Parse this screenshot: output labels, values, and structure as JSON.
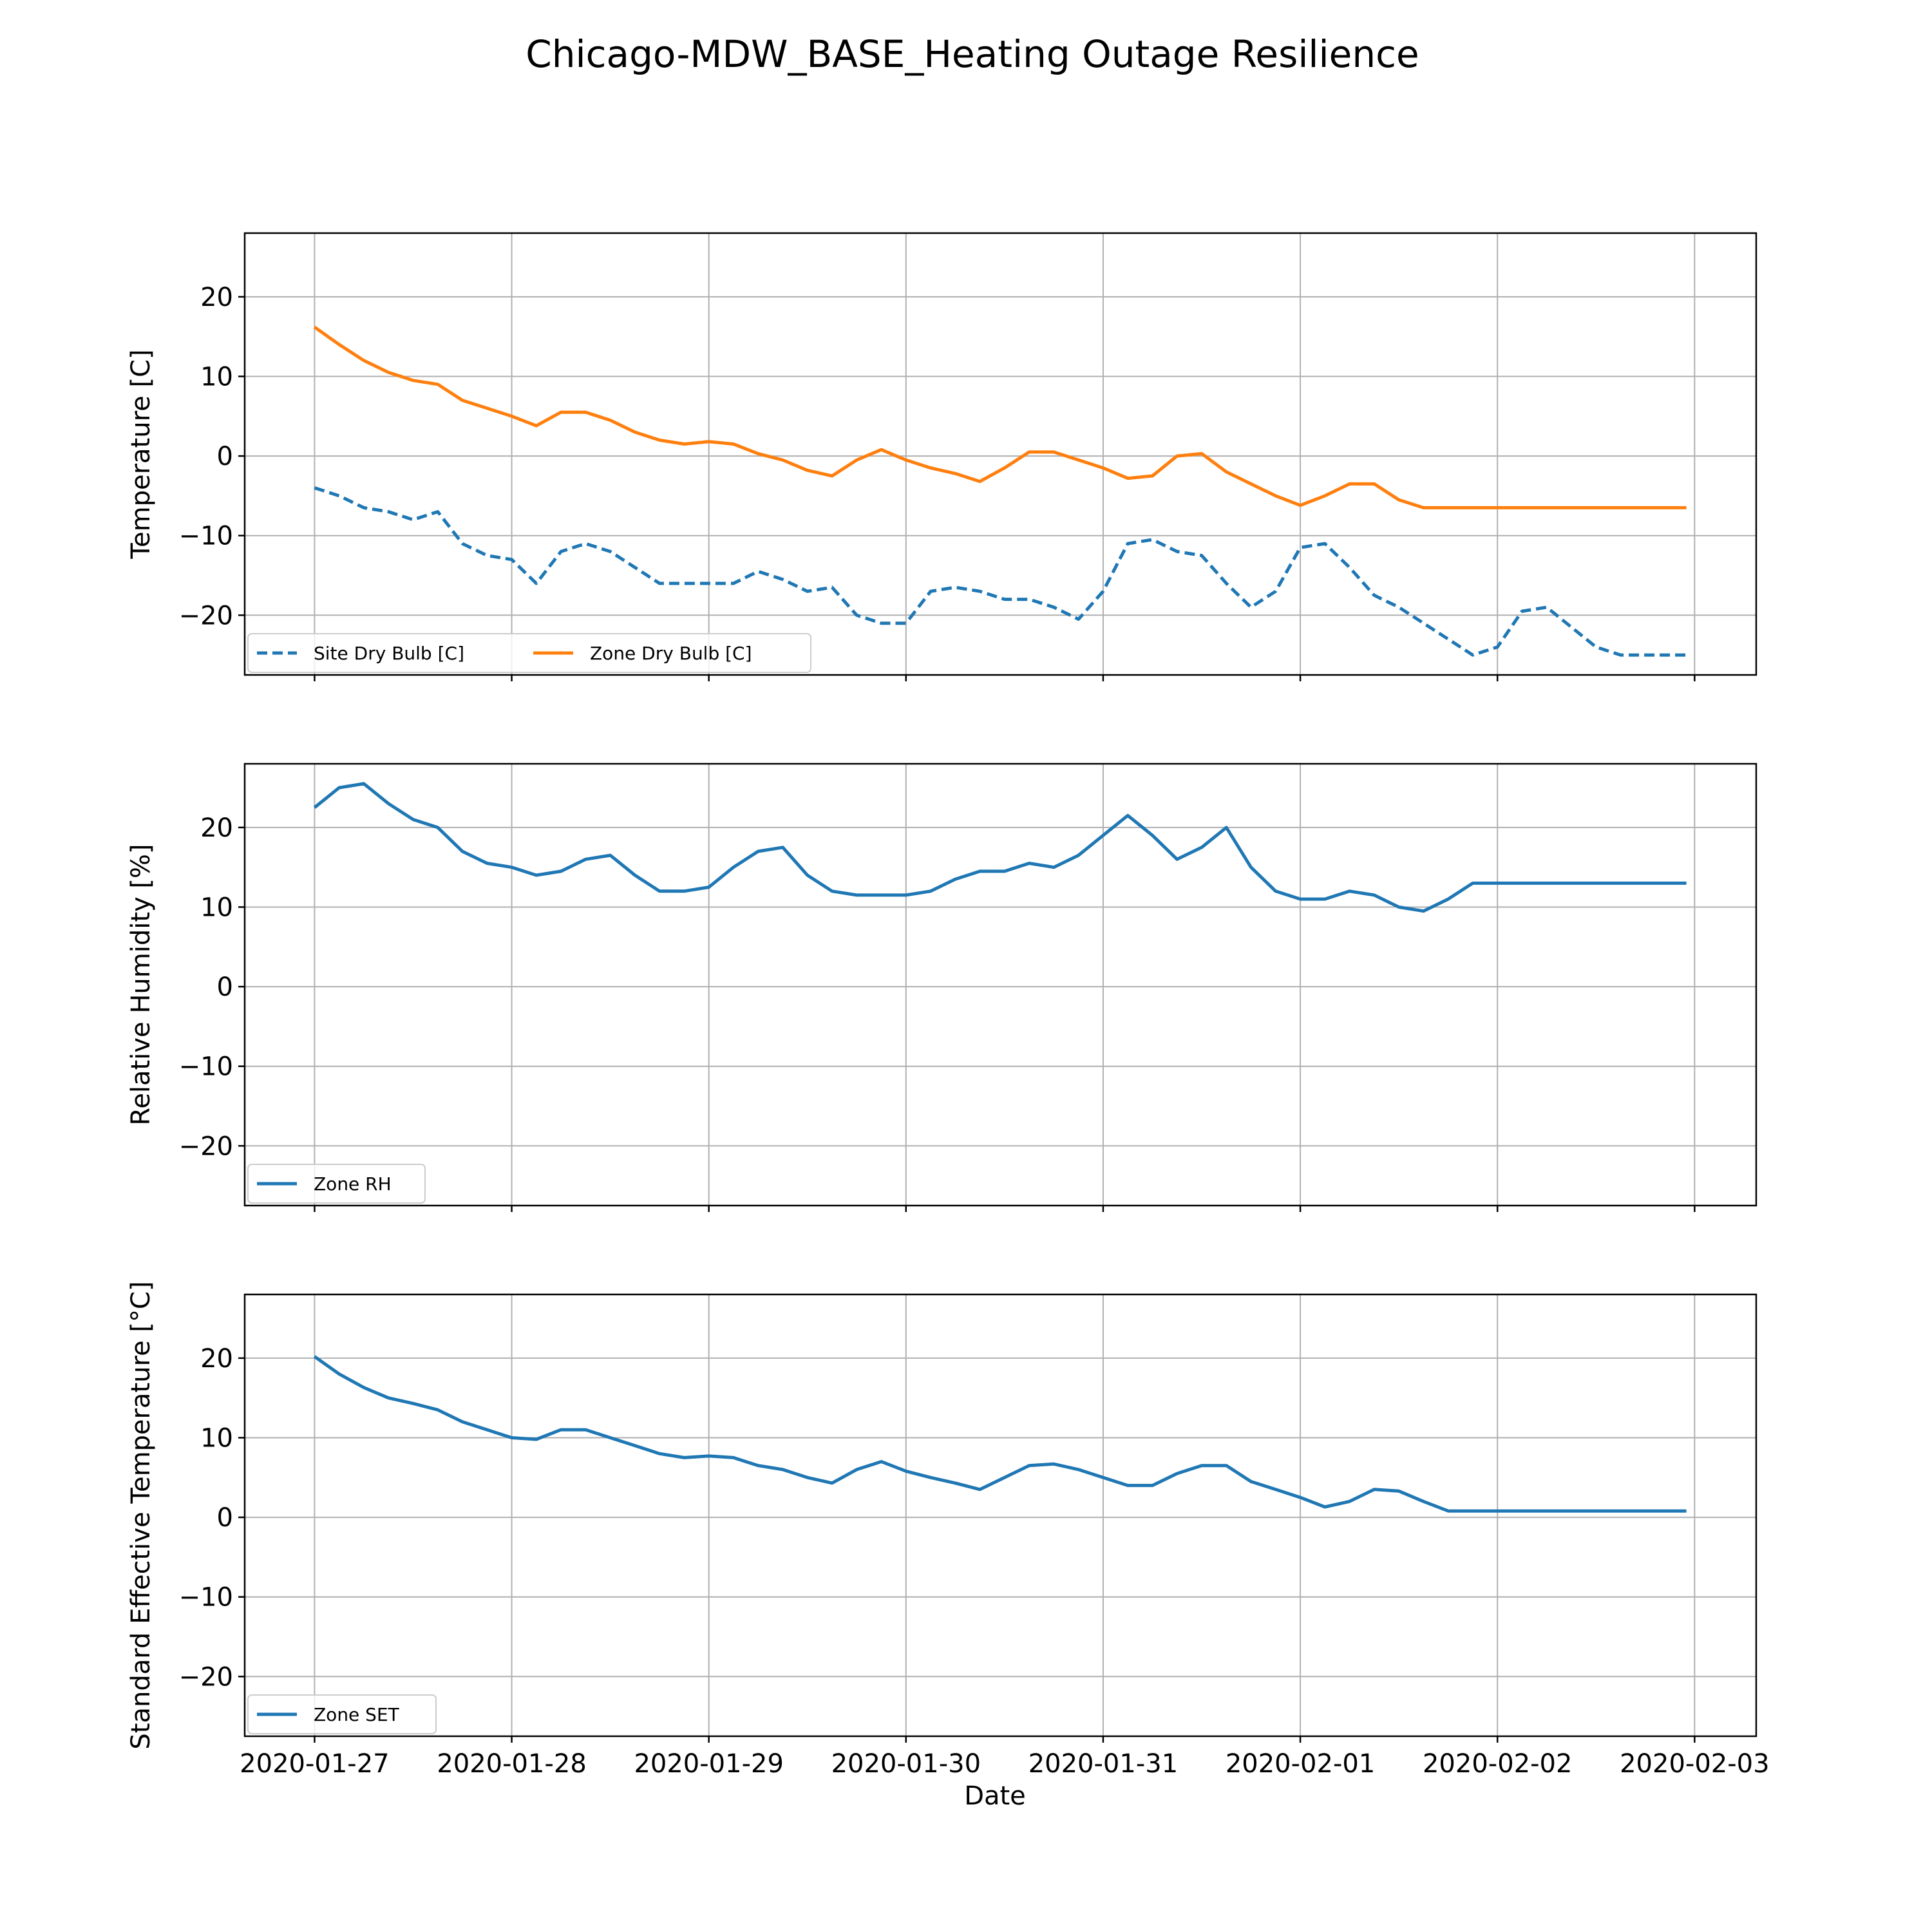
{
  "figure": {
    "title": "Chicago-MDW_BASE_Heating Outage Resilience",
    "xlabel": "Date"
  },
  "chart_data": {
    "type": "line",
    "title": "Chicago-MDW_BASE_Heating Outage Resilience",
    "xlabel": "Date",
    "x_ticks": [
      "2020-01-27",
      "2020-01-28",
      "2020-01-29",
      "2020-01-30",
      "2020-01-31",
      "2020-02-01",
      "2020-02-02",
      "2020-02-03"
    ],
    "xlim": [
      "2020-01-26 15:30",
      "2020-02-03 07:30"
    ],
    "x": [
      "2020-01-27 00:00",
      "2020-01-27 03:00",
      "2020-01-27 06:00",
      "2020-01-27 09:00",
      "2020-01-27 12:00",
      "2020-01-27 15:00",
      "2020-01-27 18:00",
      "2020-01-27 21:00",
      "2020-01-28 00:00",
      "2020-01-28 03:00",
      "2020-01-28 06:00",
      "2020-01-28 09:00",
      "2020-01-28 12:00",
      "2020-01-28 15:00",
      "2020-01-28 18:00",
      "2020-01-28 21:00",
      "2020-01-29 00:00",
      "2020-01-29 03:00",
      "2020-01-29 06:00",
      "2020-01-29 09:00",
      "2020-01-29 12:00",
      "2020-01-29 15:00",
      "2020-01-29 18:00",
      "2020-01-29 21:00",
      "2020-01-30 00:00",
      "2020-01-30 03:00",
      "2020-01-30 06:00",
      "2020-01-30 09:00",
      "2020-01-30 12:00",
      "2020-01-30 15:00",
      "2020-01-30 18:00",
      "2020-01-30 21:00",
      "2020-01-31 00:00",
      "2020-01-31 03:00",
      "2020-01-31 06:00",
      "2020-01-31 09:00",
      "2020-01-31 12:00",
      "2020-01-31 15:00",
      "2020-01-31 18:00",
      "2020-01-31 21:00",
      "2020-02-01 00:00",
      "2020-02-01 03:00",
      "2020-02-01 06:00",
      "2020-02-01 09:00",
      "2020-02-01 12:00",
      "2020-02-01 15:00",
      "2020-02-01 18:00",
      "2020-02-01 21:00",
      "2020-02-02 00:00",
      "2020-02-02 03:00",
      "2020-02-02 06:00",
      "2020-02-02 09:00",
      "2020-02-02 12:00",
      "2020-02-02 15:00",
      "2020-02-02 18:00",
      "2020-02-02 21:00",
      "2020-02-02 23:00"
    ],
    "subplots": [
      {
        "ylabel": "Temperature [C]",
        "ylim": [
          -27.5,
          28
        ],
        "yticks": [
          -20,
          -10,
          0,
          10,
          20
        ],
        "grid": true,
        "legend": {
          "placement": "lower-left",
          "columns": 2
        },
        "series": [
          {
            "name": "Site Dry Bulb [C]",
            "color": "#1f77b4",
            "style": "dashed",
            "values": [
              -4,
              -5,
              -6.5,
              -7,
              -8,
              -7,
              -11,
              -12.5,
              -13,
              -16,
              -12,
              -11,
              -12,
              -14,
              -16,
              -16,
              -16,
              -16,
              -14.5,
              -15.5,
              -17,
              -16.5,
              -20,
              -21,
              -21,
              -17,
              -16.5,
              -17,
              -18,
              -18,
              -19,
              -20.5,
              -17,
              -11,
              -10.5,
              -12,
              -12.5,
              -16,
              -19,
              -17,
              -11.5,
              -11,
              -14,
              -17.5,
              -19,
              -21,
              -23,
              -25,
              -24,
              -19.5,
              -19,
              -21.5,
              -24,
              -25,
              -25,
              -25,
              -25
            ]
          },
          {
            "name": "Zone Dry Bulb [C]",
            "color": "#ff7f0e",
            "style": "solid",
            "values": [
              16.2,
              14,
              12,
              10.5,
              9.5,
              9,
              7,
              6,
              5,
              3.8,
              5.5,
              5.5,
              4.5,
              3,
              2,
              1.5,
              1.8,
              1.5,
              0.3,
              -0.5,
              -1.8,
              -2.5,
              -0.5,
              0.8,
              -0.5,
              -1.5,
              -2.2,
              -3.2,
              -1.5,
              0.5,
              0.5,
              -0.5,
              -1.5,
              -2.8,
              -2.5,
              0,
              0.3,
              -2,
              -3.5,
              -5,
              -6.2,
              -5,
              -3.5,
              -3.5,
              -5.5,
              -6.5,
              -6.5,
              -6.5,
              -6.5,
              -6.5,
              -6.5,
              -6.5,
              -6.5,
              -6.5,
              -6.5,
              -6.5,
              -6.5
            ]
          }
        ]
      },
      {
        "ylabel": "Relative Humidity [%]",
        "ylim": [
          -27.5,
          28
        ],
        "yticks": [
          -20,
          -10,
          0,
          10,
          20
        ],
        "grid": true,
        "legend": {
          "placement": "lower-left",
          "columns": 1
        },
        "series": [
          {
            "name": "Zone RH",
            "color": "#1f77b4",
            "style": "solid",
            "values": [
              22.5,
              25,
              25.5,
              23,
              21,
              20,
              17,
              15.5,
              15,
              14,
              14.5,
              16,
              16.5,
              14,
              12,
              12,
              12.5,
              15,
              17,
              17.5,
              14,
              12,
              11.5,
              11.5,
              11.5,
              12,
              13.5,
              14.5,
              14.5,
              15.5,
              15,
              16.5,
              19,
              21.5,
              19,
              16,
              17.5,
              20,
              15,
              12,
              11,
              11,
              12,
              11.5,
              10,
              9.5,
              11,
              13,
              13,
              13,
              13,
              13,
              13,
              13,
              13,
              13,
              13
            ]
          }
        ]
      },
      {
        "ylabel": "Standard Effective Temperature [°C]",
        "ylim": [
          -27.5,
          28
        ],
        "yticks": [
          -20,
          -10,
          0,
          10,
          20
        ],
        "grid": true,
        "legend": {
          "placement": "lower-left",
          "columns": 1
        },
        "series": [
          {
            "name": "Zone SET",
            "color": "#1f77b4",
            "style": "solid",
            "values": [
              20.2,
              18,
              16.3,
              15,
              14.3,
              13.5,
              12,
              11,
              10,
              9.8,
              11,
              11,
              10,
              9,
              8,
              7.5,
              7.7,
              7.5,
              6.5,
              6,
              5,
              4.3,
              6,
              7,
              5.8,
              5,
              4.3,
              3.5,
              5,
              6.5,
              6.7,
              6,
              5,
              4,
              4,
              5.5,
              6.5,
              6.5,
              4.5,
              3.5,
              2.5,
              1.3,
              2,
              3.5,
              3.3,
              2,
              0.8,
              0.8,
              0.8,
              0.8,
              0.8,
              0.8,
              0.8,
              0.8,
              0.8,
              0.8,
              0.8
            ]
          }
        ]
      }
    ]
  }
}
